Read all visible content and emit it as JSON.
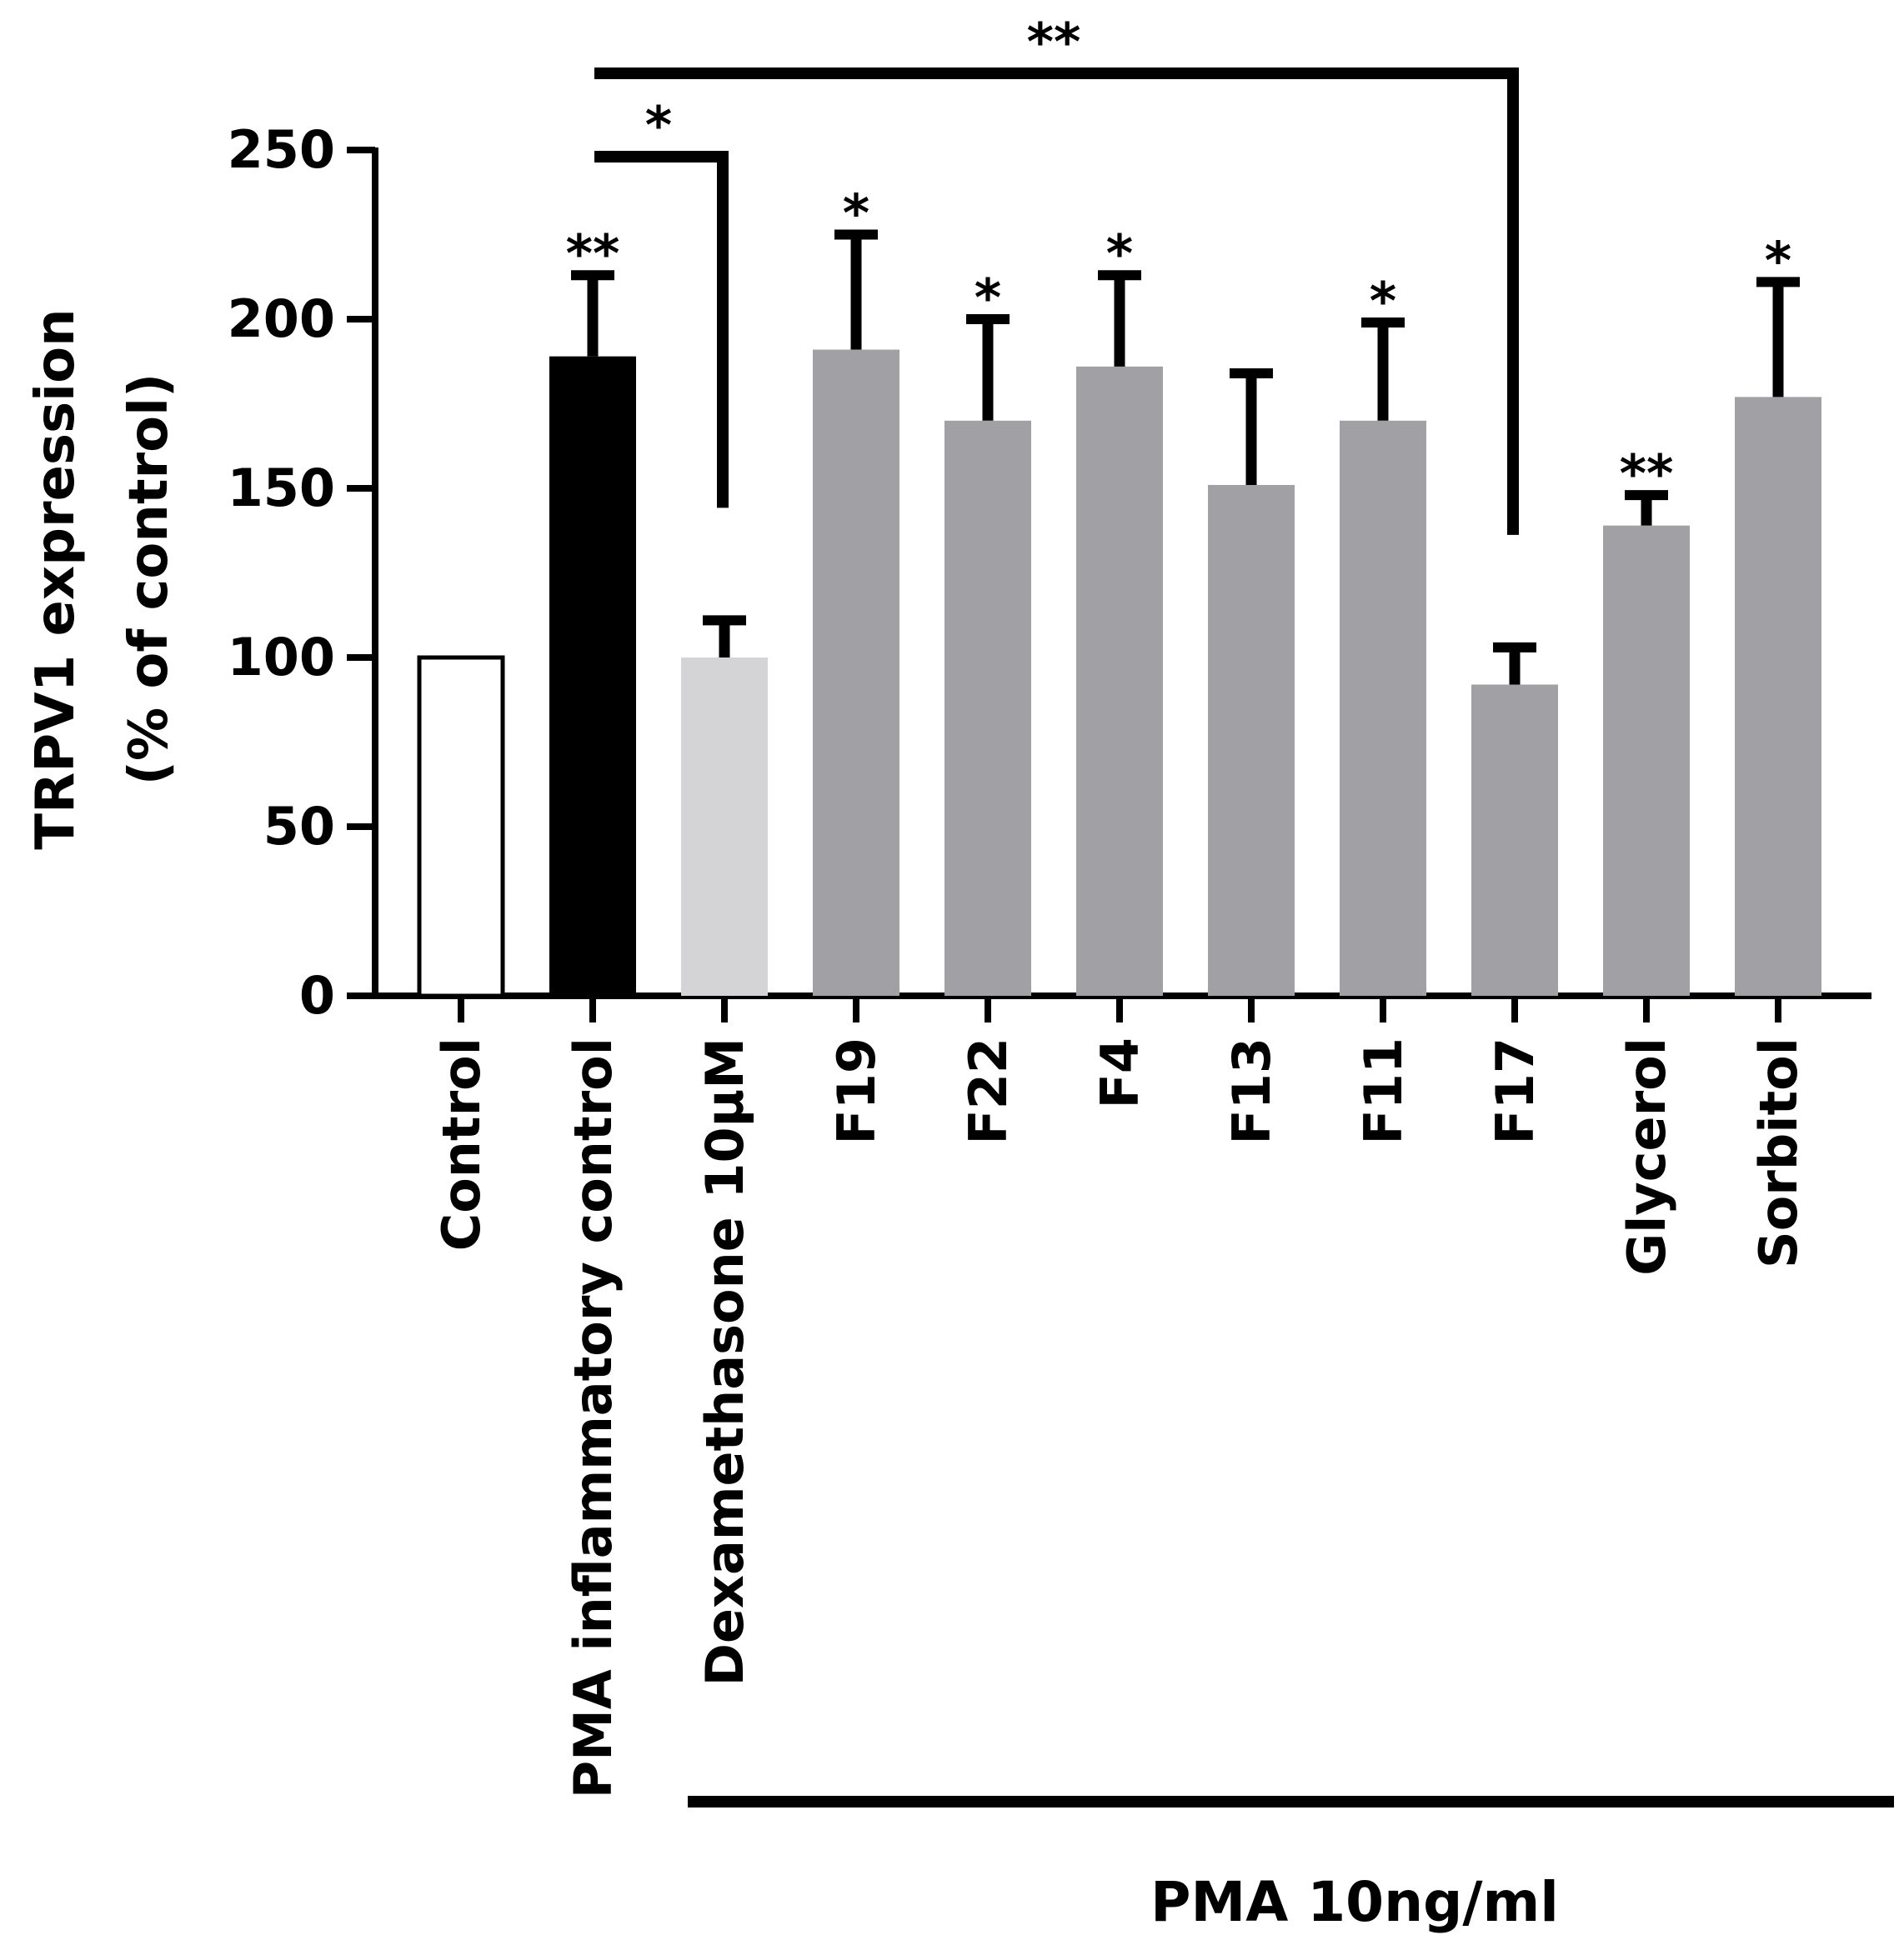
{
  "chart_data": {
    "type": "bar",
    "ylabel": "TRPV1 expression",
    "ylabel_line2": "(% of control)",
    "ylim": [
      0,
      250
    ],
    "yticks": [
      "0",
      "50",
      "100",
      "150",
      "200",
      "250"
    ],
    "grid": false,
    "categories": [
      "Control",
      "PMA inflammatory control",
      "Dexamethasone 10µM",
      "F19",
      "F22",
      "F4",
      "F13",
      "F11",
      "F17",
      "Glycerol",
      "Sorbitol"
    ],
    "values": [
      100,
      189,
      100,
      191,
      170,
      186,
      151,
      170,
      92,
      139,
      177
    ],
    "errors": [
      0,
      24,
      11,
      34,
      30,
      27,
      33,
      29,
      11,
      9,
      34
    ],
    "significance": [
      "",
      "**",
      "",
      "*",
      "*",
      "*",
      "",
      "*",
      "",
      "**",
      "*"
    ],
    "bar_colors": [
      "#ffffff",
      "#000000",
      "#d4d4d6",
      "#a1a0a5",
      "#a1a0a5",
      "#a1a0a5",
      "#a1a0a5",
      "#a1a0a5",
      "#a1a0a5",
      "#a1a0a5",
      "#a1a0a5"
    ],
    "comparisons": [
      {
        "from": 1,
        "to": 2,
        "label": "*"
      },
      {
        "from": 1,
        "to": 8,
        "label": "**"
      }
    ],
    "group_label": "PMA 10ng/ml",
    "group_range": [
      2,
      10
    ]
  }
}
